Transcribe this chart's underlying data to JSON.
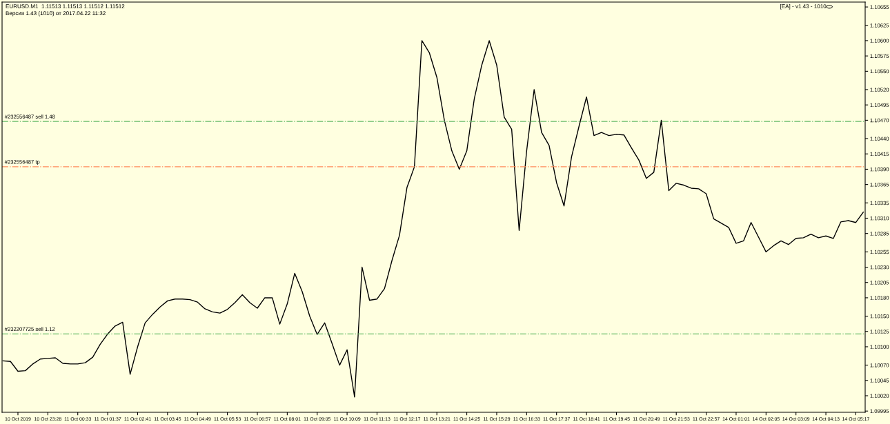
{
  "chart_data": {
    "type": "line",
    "annotations": [
      "EURUSD.M1  1.11513 1.11513 1.11512 1.11512",
      "Версия 1.43 (1010) от 2017.04.22 11:32",
      "[EA] - v1.43 - 1010"
    ],
    "categories": [
      null,
      null,
      "10 Oct 2019",
      null,
      null,
      null,
      "10 Oct 23:28",
      null,
      null,
      null,
      "11 Oct 00:33",
      null,
      null,
      null,
      "11 Oct 01:37",
      null,
      null,
      null,
      "11 Oct 02:41",
      null,
      null,
      null,
      "11 Oct 03:45",
      null,
      null,
      null,
      "11 Oct 04:49",
      null,
      null,
      null,
      "11 Oct 05:53",
      null,
      null,
      null,
      "11 Oct 06:57",
      null,
      null,
      null,
      "11 Oct 08:01",
      null,
      null,
      null,
      "11 Oct 09:05",
      null,
      null,
      null,
      "11 Oct 10:09",
      null,
      null,
      null,
      "11 Oct 11:13",
      null,
      null,
      null,
      "11 Oct 12:17",
      null,
      null,
      null,
      "11 Oct 13:21",
      null,
      null,
      null,
      "11 Oct 14:25",
      null,
      null,
      null,
      "11 Oct 15:29",
      null,
      null,
      null,
      "11 Oct 16:33",
      null,
      null,
      null,
      "11 Oct 17:37",
      null,
      null,
      null,
      "11 Oct 18:41",
      null,
      null,
      null,
      "11 Oct 19:45",
      null,
      null,
      null,
      "11 Oct 20:49",
      null,
      null,
      null,
      "11 Oct 21:53",
      null,
      null,
      null,
      "11 Oct 22:57",
      null,
      null,
      null,
      "14 Oct 01:01",
      null,
      null,
      null,
      "14 Oct 02:05",
      null,
      null,
      null,
      "14 Oct 03:09",
      null,
      null,
      null,
      "14 Oct 04:13",
      null,
      null,
      null,
      "14 Oct 05:17",
      null
    ],
    "series": [
      {
        "color": "#000000",
        "values": [
          1.10077,
          1.10076,
          1.1006,
          1.10061,
          1.10072,
          1.1008,
          1.10081,
          1.10082,
          1.10073,
          1.10072,
          1.10072,
          1.10074,
          1.10083,
          1.10104,
          1.10121,
          1.10134,
          1.1014,
          1.10055,
          1.101,
          1.10139,
          1.10153,
          1.10165,
          1.10175,
          1.10178,
          1.10178,
          1.10177,
          1.10173,
          1.10162,
          1.10157,
          1.10155,
          1.10161,
          1.10172,
          1.10185,
          1.10172,
          1.10163,
          1.1018,
          1.1018,
          1.10137,
          1.1017,
          1.1022,
          1.1019,
          1.1015,
          1.1012,
          1.10139,
          1.10105,
          1.1007,
          1.10095,
          1.10018,
          1.1023,
          1.10176,
          1.10178,
          1.10195,
          1.10241,
          1.10282,
          1.1036,
          1.10394,
          1.106,
          1.1058,
          1.1054,
          1.1047,
          1.1042,
          1.1039,
          1.1042,
          1.10505,
          1.1056,
          1.106,
          1.1056,
          1.10475,
          1.10455,
          1.1029,
          1.1042,
          1.1052,
          1.1045,
          1.10429,
          1.10368,
          1.1033,
          1.1041,
          1.1046,
          1.10508,
          1.10445,
          1.1045,
          1.10445,
          1.10447,
          1.10446,
          1.10425,
          1.10405,
          1.10375,
          1.10385,
          1.1047,
          1.10355,
          1.10367,
          1.10364,
          1.10359,
          1.10358,
          1.1035,
          1.10309,
          1.10302,
          1.10295,
          1.10269,
          1.10273,
          1.10303,
          1.10279,
          1.10255,
          1.10265,
          1.10273,
          1.10267,
          1.10277,
          1.10278,
          1.10284,
          1.10278,
          1.10281,
          1.10277,
          1.10304,
          1.10306,
          1.10303,
          1.1032
        ]
      }
    ],
    "ylim": [
      1.09993,
      1.10663
    ],
    "yticks": [
      {
        "value": 1.10655,
        "label": "1.10655"
      },
      {
        "value": 1.10625,
        "label": "1.10625"
      },
      {
        "value": 1.106,
        "label": "1.10600"
      },
      {
        "value": 1.10575,
        "label": "1.10575"
      },
      {
        "value": 1.1055,
        "label": "1.10550"
      },
      {
        "value": 1.1052,
        "label": "1.10520"
      },
      {
        "value": 1.10495,
        "label": "1.10495"
      },
      {
        "value": 1.1047,
        "label": "1.10470"
      },
      {
        "value": 1.1044,
        "label": "1.10440"
      },
      {
        "value": 1.10415,
        "label": "1.10415"
      },
      {
        "value": 1.1039,
        "label": "1.10390"
      },
      {
        "value": 1.10365,
        "label": "1.10365"
      },
      {
        "value": 1.10335,
        "label": "1.10335"
      },
      {
        "value": 1.1031,
        "label": "1.10310"
      },
      {
        "value": 1.10285,
        "label": "1.10285"
      },
      {
        "value": 1.10255,
        "label": "1.10255"
      },
      {
        "value": 1.1023,
        "label": "1.10230"
      },
      {
        "value": 1.10205,
        "label": "1.10205"
      },
      {
        "value": 1.1018,
        "label": "1.10180"
      },
      {
        "value": 1.1015,
        "label": "1.10150"
      },
      {
        "value": 1.10125,
        "label": "1.10125"
      },
      {
        "value": 1.101,
        "label": "1.10100"
      },
      {
        "value": 1.1007,
        "label": "1.10070"
      },
      {
        "value": 1.10045,
        "label": "1.10045"
      },
      {
        "value": 1.1002,
        "label": "1.10020"
      },
      {
        "value": 1.09995,
        "label": "1.09995"
      }
    ],
    "ref_lines": [
      {
        "axis": "y",
        "value": 1.10468,
        "label": "#232556487 sell 1.48",
        "color": "#66bb66",
        "line_style": "dashdot"
      },
      {
        "axis": "y",
        "value": 1.10394,
        "label": "#232556487 tp",
        "color": "#ff8c5a",
        "line_style": "dashdot"
      },
      {
        "axis": "y",
        "value": 1.10121,
        "label": "#232207725 sell 1.12",
        "color": "#66bb66",
        "line_style": "dashdot"
      }
    ],
    "grid": false,
    "legend": false,
    "marker": "none",
    "line_style": "solid"
  }
}
